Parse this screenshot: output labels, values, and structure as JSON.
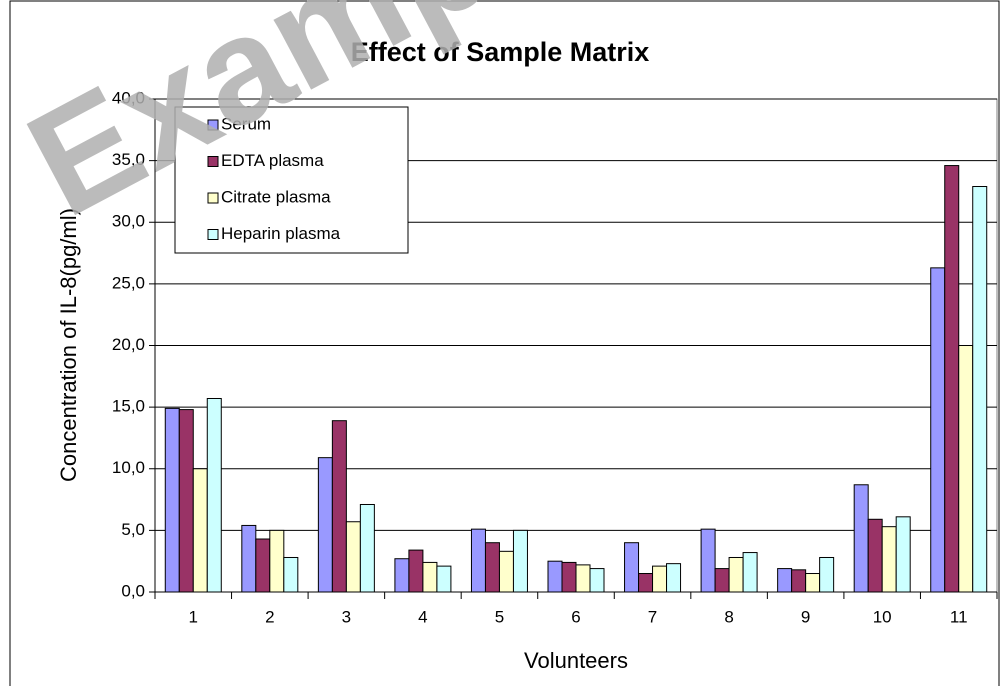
{
  "chart_data": {
    "type": "bar",
    "title": "Effect of Sample Matrix",
    "watermark": "Example",
    "xlabel": "Volunteers",
    "ylabel": "Concentration of IL-8(pg/ml)",
    "categories": [
      "1",
      "2",
      "3",
      "4",
      "5",
      "6",
      "7",
      "8",
      "9",
      "10",
      "11"
    ],
    "series": [
      {
        "name": "Serum",
        "color": "#9999ff",
        "values": [
          14.9,
          5.4,
          10.9,
          2.7,
          5.1,
          2.5,
          4.0,
          5.1,
          1.9,
          8.7,
          26.3
        ]
      },
      {
        "name": "EDTA plasma",
        "color": "#993366",
        "values": [
          14.8,
          4.3,
          13.9,
          3.4,
          4.0,
          2.4,
          1.5,
          1.9,
          1.8,
          5.9,
          34.6
        ]
      },
      {
        "name": "Citrate plasma",
        "color": "#ffffcc",
        "values": [
          10.0,
          5.0,
          5.7,
          2.4,
          3.3,
          2.2,
          2.1,
          2.8,
          1.5,
          5.3,
          20.0
        ]
      },
      {
        "name": "Heparin plasma",
        "color": "#ccffff",
        "values": [
          15.7,
          2.8,
          7.1,
          2.1,
          5.0,
          1.9,
          2.3,
          3.2,
          2.8,
          6.1,
          32.9
        ]
      }
    ],
    "ylim": [
      0,
      40
    ],
    "yticks": [
      {
        "value": 0,
        "label": "0,0"
      },
      {
        "value": 5,
        "label": "5,0"
      },
      {
        "value": 10,
        "label": "10,0"
      },
      {
        "value": 15,
        "label": "15,0"
      },
      {
        "value": 20,
        "label": "20,0"
      },
      {
        "value": 25,
        "label": "25,0"
      },
      {
        "value": 30,
        "label": "30,0"
      },
      {
        "value": 35,
        "label": "35,0"
      },
      {
        "value": 40,
        "label": "40,0"
      }
    ],
    "grid": true,
    "legend": "top-left"
  }
}
